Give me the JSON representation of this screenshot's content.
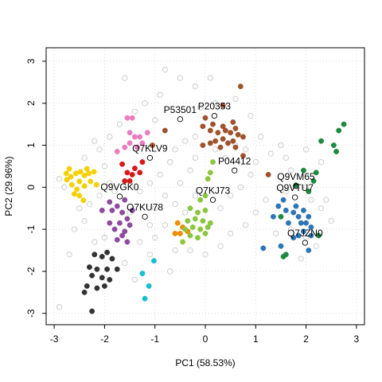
{
  "chart_data": {
    "type": "scatter",
    "x_label": "PC1 (58.53%)",
    "y_label": "PC2 (29.96%)",
    "xlim": [
      -3.16,
      3.16
    ],
    "ylim": [
      -3.27,
      3.32
    ],
    "xticks": [
      -3,
      -2,
      -1,
      0,
      1,
      2,
      3
    ],
    "yticks": [
      -3,
      -2,
      -1,
      0,
      1,
      2,
      3
    ],
    "grid": true,
    "series": [
      {
        "color": "#c8c8c8",
        "open": true,
        "x": [
          -2.9,
          -2.7,
          -2.5,
          -2.3,
          -2.1,
          -2.0,
          -1.9,
          -1.8,
          -2.0,
          -1.3,
          -1.1,
          -1.0,
          -0.8,
          -1.0,
          -0.8,
          -0.9,
          -0.7,
          -0.6,
          -0.4,
          -0.3,
          -0.5,
          -0.6,
          -0.2,
          0.3,
          0.5,
          0.7,
          0.9,
          1.0,
          0.8,
          1.1,
          0.9,
          0.6,
          0.2,
          -0.2,
          -0.5,
          -0.9,
          -1.2,
          -1.4,
          -1.7,
          -1.9,
          -2.1,
          -2.4,
          -2.8,
          -1.6,
          -0.8,
          0.1,
          -0.1,
          -1.0,
          1.3,
          1.5,
          1.7,
          2.3,
          2.4,
          2.5,
          2.3,
          2.2,
          1.9,
          1.4,
          1.2,
          1.0,
          0.8,
          0.5,
          0.3,
          0.0,
          -0.3,
          -0.6,
          -0.7,
          -1.4,
          -1.6,
          -2.6,
          -2.9,
          -2.2,
          -1.3,
          -1.1,
          -0.4,
          0.2,
          0.4,
          -0.2,
          1.6,
          2.0,
          2.1,
          1.7,
          2.0,
          1.6,
          2.0,
          -1.5,
          -1.1,
          -2.4,
          -2.2,
          0.6,
          -0.2
        ],
        "values": [
          -2.85,
          -1.6,
          -0.5,
          -0.4,
          -0.2,
          0.5,
          0.1,
          -0.1,
          -1.2,
          -1.3,
          -1.6,
          -1.2,
          -0.9,
          -0.5,
          -0.2,
          0.3,
          0.6,
          0.9,
          1.1,
          0.4,
          0.1,
          -0.4,
          -0.2,
          -0.5,
          -0.2,
          0.0,
          0.3,
          0.6,
          0.9,
          1.2,
          1.7,
          2.1,
          2.0,
          2.4,
          2.6,
          2.2,
          2.0,
          1.8,
          1.5,
          1.2,
          0.9,
          0.7,
          0.0,
          2.6,
          2.8,
          2.6,
          1.9,
          1.6,
          0.8,
          1.0,
          0.4,
          0.6,
          -0.3,
          -0.8,
          -0.5,
          -1.4,
          -1.7,
          -1.1,
          -0.3,
          -0.6,
          -0.9,
          -1.1,
          -1.4,
          -1.6,
          -1.5,
          -1.5,
          -2.0,
          -2.2,
          -1.8,
          -1.0,
          0.2,
          1.1,
          -0.1,
          0.1,
          -0.6,
          0.9,
          0.7,
          0.7,
          -0.1,
          0.0,
          -0.3,
          -1.0,
          -1.2,
          0.7,
          0.9,
          -0.6,
          -0.9,
          -0.8,
          -1.3,
          1.0,
          1.2
        ]
      },
      {
        "color": "#f5d000",
        "x": [
          -2.76,
          -2.67,
          -2.57,
          -2.48,
          -2.4,
          -2.31,
          -2.21,
          -2.5,
          -2.65,
          -2.55,
          -2.4,
          -2.28,
          -2.16,
          -2.6,
          -2.5,
          -2.42,
          -2.7,
          -2.35,
          -2.75
        ],
        "values": [
          0.33,
          0.25,
          0.33,
          0.37,
          0.28,
          0.33,
          0.37,
          0.14,
          0.06,
          -0.05,
          0.03,
          0.14,
          0.06,
          -0.16,
          -0.2,
          -0.31,
          0.44,
          0.44,
          0.18
        ]
      },
      {
        "color": "#e87dbf",
        "x": [
          -1.55,
          -1.45,
          -1.5,
          -1.4,
          -1.3,
          -1.5,
          -1.25,
          -1.15,
          -1.6,
          -1.35,
          -1.75
        ],
        "values": [
          1.65,
          1.65,
          1.3,
          1.2,
          1.2,
          1.05,
          1.05,
          1.3,
          0.95,
          0.95,
          0.85
        ]
      },
      {
        "color": "#d7191c",
        "x": [
          -1.55,
          -1.45,
          -1.6,
          -1.5,
          -1.3,
          -1.25,
          -1.65,
          -1.4
        ],
        "values": [
          0.35,
          0.3,
          0.15,
          0.15,
          0.35,
          0.6,
          0.55,
          0.45
        ]
      },
      {
        "color": "#8e4aa0",
        "x": [
          -1.9,
          -1.75,
          -1.6,
          -1.85,
          -1.65,
          -1.55,
          -1.7,
          -1.9,
          -1.8,
          -1.6,
          -1.5,
          -1.75,
          -1.55,
          -1.65,
          -2.05,
          -1.45
        ],
        "values": [
          -0.35,
          -0.45,
          -0.3,
          -0.55,
          -0.6,
          -0.75,
          -0.85,
          -0.85,
          -1.0,
          -1.05,
          -0.9,
          -1.25,
          -1.3,
          -1.15,
          -0.55,
          -0.55
        ]
      },
      {
        "color": "#333333",
        "x": [
          -2.2,
          -2.05,
          -1.85,
          -2.3,
          -2.15,
          -1.95,
          -1.75,
          -2.25,
          -2.05,
          -1.9,
          -2.35,
          -2.15,
          -2.0,
          -2.4,
          -2.25,
          -1.95
        ],
        "values": [
          -1.6,
          -1.65,
          -1.7,
          -1.9,
          -1.95,
          -1.95,
          -1.95,
          -2.1,
          -2.15,
          -2.2,
          -2.35,
          -2.4,
          -2.35,
          -2.5,
          -2.95,
          -1.55
        ]
      },
      {
        "color": "#17becf",
        "x": [
          -1.02,
          -1.25,
          -1.12,
          -1.2
        ],
        "values": [
          -1.75,
          -2.05,
          -2.35,
          -2.65
        ]
      },
      {
        "color": "#f08c00",
        "x": [
          -0.55,
          -0.45,
          -0.6,
          -0.5,
          -0.35
        ],
        "values": [
          -0.85,
          -0.95,
          -1.1,
          -1.1,
          -1.05
        ]
      },
      {
        "color": "#8cc63f",
        "x": [
          0.15,
          0.1,
          0.05,
          0.0,
          -0.1,
          0.0,
          -0.15,
          -0.3,
          -0.2,
          -0.05,
          0.1,
          -0.35,
          -0.25,
          -0.1,
          0.0,
          -0.3,
          -0.4,
          -0.15,
          -0.45,
          0.05
        ],
        "values": [
          0.6,
          0.35,
          0.2,
          -0.2,
          -0.3,
          -0.55,
          -0.6,
          -0.5,
          -0.75,
          -0.8,
          -0.85,
          -0.8,
          -0.95,
          -1.0,
          -1.1,
          -1.15,
          -1.0,
          -1.2,
          -1.3,
          -0.95
        ]
      },
      {
        "color": "#a0522d",
        "x": [
          0.7,
          0.35,
          -0.8,
          0.0,
          0.15,
          0.35,
          0.55,
          0.1,
          0.25,
          0.4,
          0.5,
          0.6,
          0.2,
          0.35,
          0.45,
          0.55,
          0.65,
          0.75,
          -0.05,
          0.3,
          0.1,
          0.6,
          0.75,
          -1.05,
          -0.05,
          1.25
        ],
        "values": [
          2.4,
          1.95,
          1.35,
          1.65,
          1.5,
          1.45,
          1.55,
          1.35,
          1.3,
          1.35,
          1.3,
          1.4,
          1.1,
          1.15,
          1.05,
          1.1,
          1.25,
          1.2,
          1.0,
          0.95,
          1.05,
          0.95,
          0.75,
          1.0,
          1.45,
          0.3
        ]
      },
      {
        "color": "#2e75b6",
        "x": [
          1.45,
          1.55,
          1.6,
          1.75,
          1.85,
          1.95,
          2.05,
          1.8,
          1.9,
          2.0,
          2.1,
          1.95,
          1.85,
          2.1,
          1.75,
          1.5,
          2.05,
          1.15,
          1.65,
          1.35
        ],
        "values": [
          -0.45,
          -0.3,
          -0.55,
          -0.6,
          -0.7,
          -0.55,
          -0.7,
          -0.45,
          -0.85,
          -0.85,
          -0.95,
          -1.05,
          -1.15,
          -1.15,
          -1.2,
          -1.4,
          -1.5,
          -1.45,
          -0.85,
          -0.7
        ]
      },
      {
        "color": "#1e8a3e",
        "x": [
          2.65,
          2.75,
          2.55,
          2.6,
          2.3,
          2.2,
          1.95,
          2.15,
          2.05,
          1.8,
          1.5,
          1.6,
          1.55,
          2.25
        ],
        "values": [
          1.35,
          1.5,
          1.0,
          0.85,
          1.1,
          0.35,
          0.4,
          0.15,
          -0.1,
          0.05,
          -0.7,
          -1.6,
          -1.65,
          -1.15
        ]
      },
      {
        "color": "#000000",
        "open": true,
        "x": [
          -0.5,
          0.18,
          -1.1,
          0.58,
          1.8,
          1.78,
          0.15,
          -1.7,
          -1.2,
          1.98
        ],
        "values": [
          1.62,
          1.7,
          0.7,
          0.4,
          0.03,
          -0.24,
          -0.3,
          -0.22,
          -0.7,
          -1.32
        ],
        "labels": [
          "P53501",
          "P20353",
          "Q7KLV9",
          "P04412",
          "Q9VM65",
          "Q9VTU7",
          "Q7KJ73",
          "Q9VGK0",
          "Q7KU78",
          "Q7JZN0"
        ]
      }
    ]
  }
}
